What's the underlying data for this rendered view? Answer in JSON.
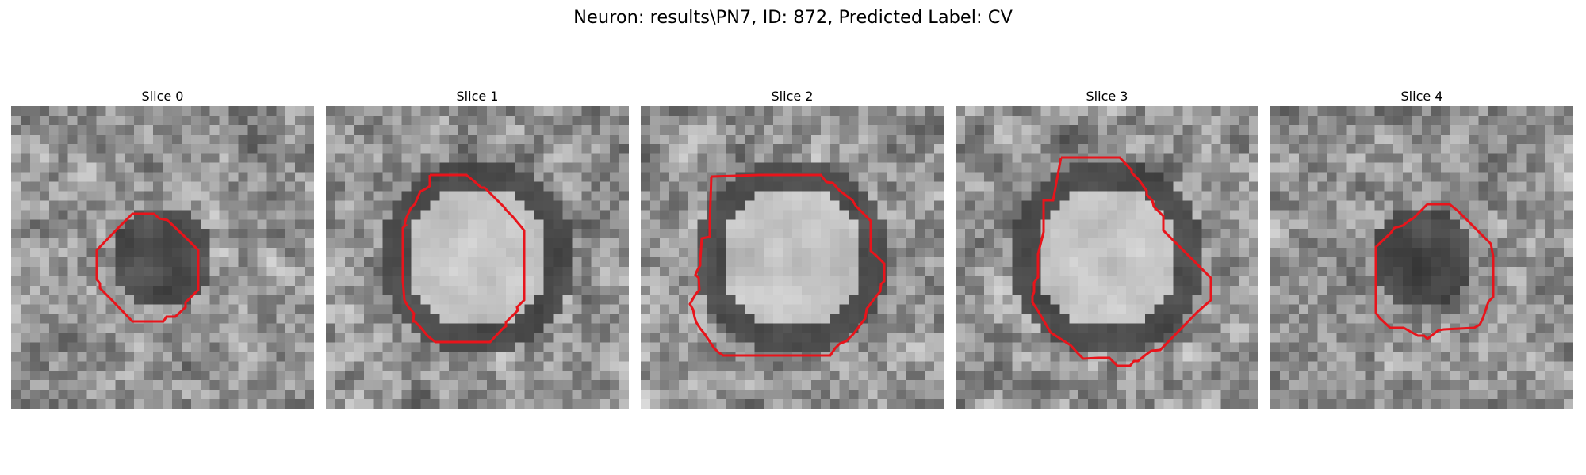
{
  "figure": {
    "title": "Neuron: results\\PN7, ID: 872, Predicted Label: CV",
    "contour_color": "#e8141b"
  },
  "panels": [
    {
      "title": "Slice 0",
      "seed": 11,
      "center_kind": "dark",
      "contour_size": "small"
    },
    {
      "title": "Slice 1",
      "seed": 23,
      "center_kind": "bright",
      "contour_size": "large"
    },
    {
      "title": "Slice 2",
      "seed": 37,
      "center_kind": "bright",
      "contour_size": "large"
    },
    {
      "title": "Slice 3",
      "seed": 41,
      "center_kind": "bright",
      "contour_size": "large"
    },
    {
      "title": "Slice 4",
      "seed": 53,
      "center_kind": "dark",
      "contour_size": "small"
    }
  ]
}
